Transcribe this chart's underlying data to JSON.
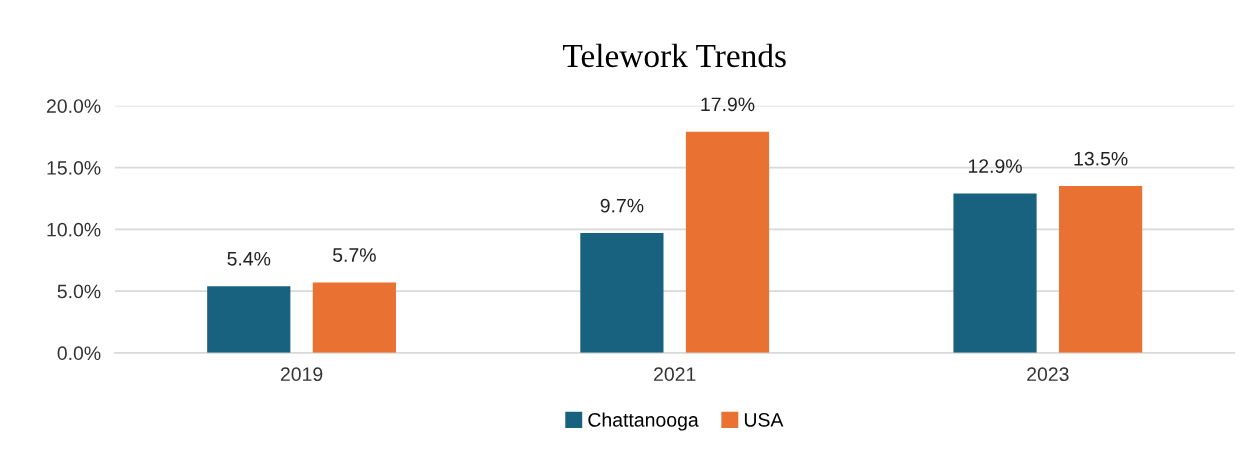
{
  "chart_data": {
    "type": "bar",
    "title": "Telework Trends",
    "categories": [
      "2019",
      "2021",
      "2023"
    ],
    "series": [
      {
        "name": "Chattanooga",
        "color": "#18627f",
        "values": [
          5.4,
          9.7,
          12.9
        ],
        "value_labels": [
          "5.4%",
          "9.7%",
          "12.9%"
        ]
      },
      {
        "name": "USA",
        "color": "#e97132",
        "values": [
          5.7,
          17.9,
          13.5
        ],
        "value_labels": [
          "5.7%",
          "17.9%",
          "13.5%"
        ]
      }
    ],
    "ylim": [
      0,
      20
    ],
    "yticks": [
      {
        "value": 0,
        "label": "0.0%"
      },
      {
        "value": 5,
        "label": "5.0%"
      },
      {
        "value": 10,
        "label": "10.0%"
      },
      {
        "value": 15,
        "label": "15.0%"
      },
      {
        "value": 20,
        "label": "20.0%"
      }
    ],
    "grid": "y",
    "legend": "bottom"
  }
}
